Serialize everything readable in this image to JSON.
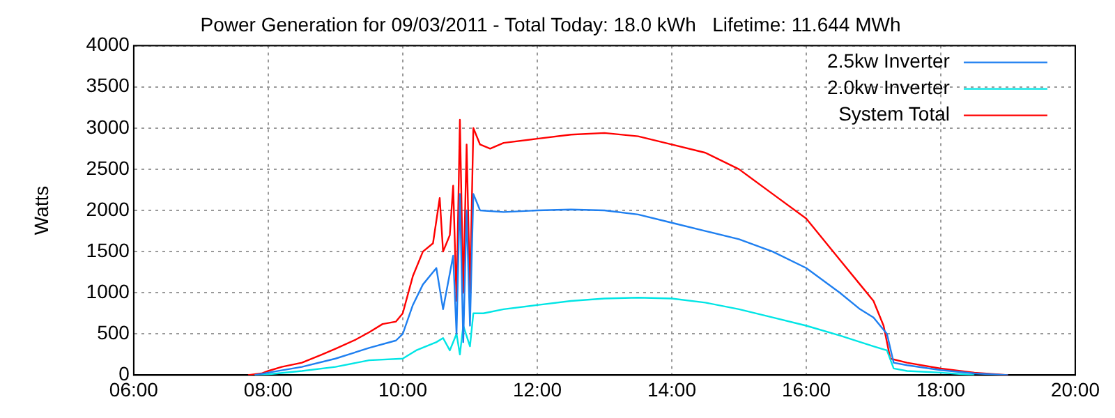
{
  "chart_data": {
    "type": "line",
    "title": "Power Generation for 09/03/2011 - Total Today: 18.0 kWh   Lifetime: 11.644 MWh",
    "ylabel": "Watts",
    "xlim": [
      6,
      20
    ],
    "xticks": [
      {
        "value": 6,
        "label": "06:00"
      },
      {
        "value": 8,
        "label": "08:00"
      },
      {
        "value": 10,
        "label": "10:00"
      },
      {
        "value": 12,
        "label": "12:00"
      },
      {
        "value": 14,
        "label": "14:00"
      },
      {
        "value": 16,
        "label": "16:00"
      },
      {
        "value": 18,
        "label": "18:00"
      },
      {
        "value": 20,
        "label": "20:00"
      }
    ],
    "ylim": [
      0,
      4000
    ],
    "yticks": [
      0,
      500,
      1000,
      1500,
      2000,
      2500,
      3000,
      3500,
      4000
    ],
    "grid": true,
    "legend": "top right",
    "line_style": "solid",
    "marker": "none",
    "series": [
      {
        "name": "2.5kw Inverter",
        "color": "#1e7ff0",
        "x": [
          7.8,
          8.0,
          8.5,
          9.0,
          9.5,
          9.9,
          10.0,
          10.15,
          10.3,
          10.5,
          10.6,
          10.75,
          10.8,
          10.85,
          10.9,
          10.95,
          11.0,
          11.05,
          11.15,
          11.5,
          12.0,
          12.5,
          13.0,
          13.5,
          14.0,
          14.5,
          15.0,
          15.5,
          16.0,
          16.5,
          16.8,
          17.0,
          17.2,
          17.3,
          17.5,
          18.0,
          18.5,
          19.0
        ],
        "values": [
          0,
          30,
          100,
          200,
          330,
          420,
          500,
          850,
          1100,
          1300,
          800,
          1450,
          500,
          2200,
          400,
          2000,
          600,
          2200,
          2000,
          1980,
          2000,
          2010,
          2000,
          1950,
          1850,
          1750,
          1650,
          1500,
          1300,
          1000,
          800,
          700,
          500,
          150,
          120,
          60,
          20,
          0
        ]
      },
      {
        "name": "2.0kw Inverter",
        "color": "#00e5e5",
        "x": [
          7.8,
          8.0,
          8.5,
          9.0,
          9.5,
          10.0,
          10.2,
          10.5,
          10.6,
          10.7,
          10.8,
          10.85,
          10.9,
          11.0,
          11.05,
          11.2,
          11.5,
          12.0,
          12.5,
          13.0,
          13.5,
          14.0,
          14.5,
          15.0,
          15.5,
          16.0,
          16.5,
          17.0,
          17.2,
          17.3,
          17.5,
          18.0,
          18.5
        ],
        "values": [
          0,
          10,
          50,
          100,
          180,
          200,
          300,
          400,
          450,
          300,
          500,
          250,
          600,
          350,
          750,
          750,
          800,
          850,
          900,
          930,
          940,
          930,
          880,
          800,
          700,
          600,
          480,
          350,
          300,
          80,
          50,
          30,
          0
        ]
      },
      {
        "name": "System Total",
        "color": "#ff0000",
        "x": [
          7.7,
          7.9,
          8.0,
          8.2,
          8.5,
          8.8,
          9.0,
          9.3,
          9.5,
          9.7,
          9.9,
          10.0,
          10.15,
          10.3,
          10.45,
          10.55,
          10.6,
          10.7,
          10.75,
          10.8,
          10.85,
          10.9,
          10.95,
          11.0,
          11.05,
          11.15,
          11.3,
          11.5,
          12.0,
          12.5,
          13.0,
          13.5,
          14.0,
          14.5,
          15.0,
          15.5,
          16.0,
          16.5,
          16.8,
          17.0,
          17.15,
          17.25,
          17.5,
          18.0,
          18.5,
          19.0
        ],
        "values": [
          0,
          20,
          50,
          100,
          150,
          250,
          320,
          430,
          520,
          620,
          650,
          750,
          1200,
          1500,
          1600,
          2150,
          1500,
          1700,
          2300,
          900,
          3100,
          1000,
          2800,
          1000,
          3000,
          2800,
          2750,
          2820,
          2870,
          2920,
          2940,
          2900,
          2800,
          2700,
          2500,
          2200,
          1900,
          1400,
          1100,
          900,
          600,
          200,
          150,
          80,
          30,
          0
        ]
      }
    ]
  }
}
